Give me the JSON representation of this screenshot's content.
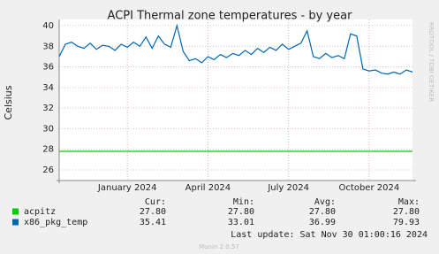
{
  "chart_data": {
    "type": "line",
    "title": "ACPI Thermal zone temperatures - by year",
    "y_label": "Celsius",
    "side_label": "RRDTOOL / TOBI OETIKER",
    "categories": [
      null,
      null,
      null,
      null,
      null,
      null,
      null,
      null,
      null,
      null,
      null,
      "January 2024",
      null,
      null,
      null,
      null,
      null,
      null,
      null,
      null,
      null,
      null,
      null,
      null,
      "April 2024",
      null,
      null,
      null,
      null,
      null,
      null,
      null,
      null,
      null,
      null,
      null,
      null,
      "July 2024",
      null,
      null,
      null,
      null,
      null,
      null,
      null,
      null,
      null,
      null,
      null,
      null,
      "October 2024",
      null,
      null,
      null,
      null,
      null,
      null,
      null
    ],
    "series": [
      {
        "name": "acpitz",
        "color": "#00cc00",
        "values": [
          27.8,
          27.8,
          27.8,
          27.8,
          27.8,
          27.8,
          27.8,
          27.8,
          27.8,
          27.8,
          27.8,
          27.8,
          27.8,
          27.8,
          27.8,
          27.8,
          27.8,
          27.8,
          27.8,
          27.8,
          27.8,
          27.8,
          27.8,
          27.8,
          27.8,
          27.8,
          27.8,
          27.8,
          27.8,
          27.8,
          27.8,
          27.8,
          27.8,
          27.8,
          27.8,
          27.8,
          27.8,
          27.8,
          27.8,
          27.8,
          27.8,
          27.8,
          27.8,
          27.8,
          27.8,
          27.8,
          27.8,
          27.8,
          27.8,
          27.8,
          27.8,
          27.8,
          27.8,
          27.8,
          27.8,
          27.8,
          27.8,
          27.8
        ]
      },
      {
        "name": "x86_pkg_temp",
        "color": "#0066b3",
        "values": [
          37.0,
          38.2,
          38.4,
          38.0,
          37.8,
          38.3,
          37.7,
          38.1,
          38.0,
          37.6,
          38.2,
          37.9,
          38.4,
          38.0,
          38.9,
          37.8,
          39.0,
          38.2,
          37.9,
          40.0,
          37.5,
          36.6,
          36.8,
          36.4,
          37.0,
          36.7,
          37.2,
          36.9,
          37.3,
          37.1,
          37.6,
          37.2,
          37.8,
          37.4,
          37.9,
          37.6,
          38.2,
          37.7,
          38.0,
          38.3,
          39.5,
          37.0,
          36.8,
          37.3,
          36.9,
          37.1,
          36.8,
          39.2,
          39.0,
          35.8,
          35.6,
          35.7,
          35.4,
          35.3,
          35.5,
          35.3,
          35.7,
          35.5
        ]
      }
    ],
    "ylim": [
      25,
      40
    ],
    "yticks": [
      26,
      28,
      30,
      32,
      34,
      36,
      38,
      40
    ],
    "grid": true,
    "summary": {
      "columns": [
        "Cur:",
        "Min:",
        "Avg:",
        "Max:"
      ],
      "rows": [
        [
          "27.80",
          "27.80",
          "27.80",
          "27.80"
        ],
        [
          "35.41",
          "33.01",
          "36.99",
          "79.93"
        ]
      ]
    },
    "last_update": "Last update: Sat Nov 30 01:00:16 2024",
    "footer": "Munin 2.0.57"
  }
}
